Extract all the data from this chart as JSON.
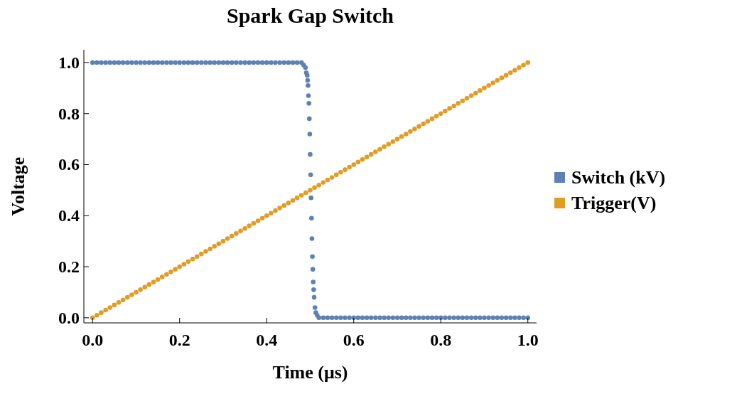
{
  "chart_data": {
    "type": "scatter",
    "title": "Spark Gap Switch",
    "xlabel": "Time (μs)",
    "ylabel": "Voltage",
    "xlim": [
      -0.02,
      1.02
    ],
    "ylim": [
      -0.02,
      1.05
    ],
    "xticks": [
      {
        "value": 0,
        "label": "0.0"
      },
      0.2,
      0.4,
      0.6,
      0.8,
      {
        "value": 1,
        "label": "1.0"
      }
    ],
    "yticks": [
      {
        "value": 0,
        "label": "0.0"
      },
      0.2,
      0.4,
      0.6,
      0.8,
      {
        "value": 1,
        "label": "1.0"
      }
    ],
    "grid": false,
    "legend": "right",
    "marker": "circle",
    "series": [
      {
        "name": "Switch (kV)",
        "color": "#5e81b5",
        "x": [
          0,
          0.01,
          0.02,
          0.03,
          0.04,
          0.05,
          0.06,
          0.07,
          0.08,
          0.09,
          0.1,
          0.11,
          0.12,
          0.13,
          0.14,
          0.15,
          0.16,
          0.17,
          0.18,
          0.19,
          0.2,
          0.21,
          0.22,
          0.23,
          0.24,
          0.25,
          0.26,
          0.27,
          0.28,
          0.29,
          0.3,
          0.31,
          0.32,
          0.33,
          0.34,
          0.35,
          0.36,
          0.37,
          0.38,
          0.39,
          0.4,
          0.41,
          0.42,
          0.43,
          0.44,
          0.45,
          0.46,
          0.47,
          0.48,
          0.485,
          0.489,
          0.491,
          0.493,
          0.494,
          0.495,
          0.496,
          0.497,
          0.498,
          0.499,
          0.5,
          0.501,
          0.502,
          0.503,
          0.504,
          0.505,
          0.506,
          0.507,
          0.508,
          0.509,
          0.511,
          0.513,
          0.516,
          0.52,
          0.53,
          0.54,
          0.55,
          0.56,
          0.57,
          0.58,
          0.59,
          0.6,
          0.61,
          0.62,
          0.63,
          0.64,
          0.65,
          0.66,
          0.67,
          0.68,
          0.69,
          0.7,
          0.71,
          0.72,
          0.73,
          0.74,
          0.75,
          0.76,
          0.77,
          0.78,
          0.79,
          0.8,
          0.81,
          0.82,
          0.83,
          0.84,
          0.85,
          0.86,
          0.87,
          0.88,
          0.89,
          0.9,
          0.91,
          0.92,
          0.93,
          0.94,
          0.95,
          0.96,
          0.97,
          0.98,
          0.99,
          1
        ],
        "values": [
          1,
          1,
          1,
          1,
          1,
          1,
          1,
          1,
          1,
          1,
          1,
          1,
          1,
          1,
          1,
          1,
          1,
          1,
          1,
          1,
          1,
          1,
          1,
          1,
          1,
          1,
          1,
          1,
          1,
          1,
          1,
          1,
          1,
          1,
          1,
          1,
          1,
          1,
          1,
          1,
          1,
          1,
          1,
          1,
          1,
          1,
          1,
          1,
          1,
          0.99,
          0.98,
          0.96,
          0.95,
          0.93,
          0.91,
          0.87,
          0.84,
          0.78,
          0.72,
          0.64,
          0.56,
          0.47,
          0.39,
          0.31,
          0.24,
          0.19,
          0.14,
          0.11,
          0.08,
          0.04,
          0.02,
          0.01,
          0,
          0,
          0,
          0,
          0,
          0,
          0,
          0,
          0,
          0,
          0,
          0,
          0,
          0,
          0,
          0,
          0,
          0,
          0,
          0,
          0,
          0,
          0,
          0,
          0,
          0,
          0,
          0,
          0,
          0,
          0,
          0,
          0,
          0,
          0,
          0,
          0,
          0,
          0,
          0,
          0,
          0,
          0,
          0,
          0,
          0,
          0,
          0,
          0
        ]
      },
      {
        "name": "Trigger(V)",
        "color": "#e19c24",
        "x": [
          0,
          0.01,
          0.02,
          0.03,
          0.04,
          0.05,
          0.06,
          0.07,
          0.08,
          0.09,
          0.1,
          0.11,
          0.12,
          0.13,
          0.14,
          0.15,
          0.16,
          0.17,
          0.18,
          0.19,
          0.2,
          0.21,
          0.22,
          0.23,
          0.24,
          0.25,
          0.26,
          0.27,
          0.28,
          0.29,
          0.3,
          0.31,
          0.32,
          0.33,
          0.34,
          0.35,
          0.36,
          0.37,
          0.38,
          0.39,
          0.4,
          0.41,
          0.42,
          0.43,
          0.44,
          0.45,
          0.46,
          0.47,
          0.48,
          0.49,
          0.5,
          0.51,
          0.52,
          0.53,
          0.54,
          0.55,
          0.56,
          0.57,
          0.58,
          0.59,
          0.6,
          0.61,
          0.62,
          0.63,
          0.64,
          0.65,
          0.66,
          0.67,
          0.68,
          0.69,
          0.7,
          0.71,
          0.72,
          0.73,
          0.74,
          0.75,
          0.76,
          0.77,
          0.78,
          0.79,
          0.8,
          0.81,
          0.82,
          0.83,
          0.84,
          0.85,
          0.86,
          0.87,
          0.88,
          0.89,
          0.9,
          0.91,
          0.92,
          0.93,
          0.94,
          0.95,
          0.96,
          0.97,
          0.98,
          0.99,
          1
        ],
        "values": [
          0,
          0.01,
          0.02,
          0.03,
          0.04,
          0.05,
          0.06,
          0.07,
          0.08,
          0.09,
          0.1,
          0.11,
          0.12,
          0.13,
          0.14,
          0.15,
          0.16,
          0.17,
          0.18,
          0.19,
          0.2,
          0.21,
          0.22,
          0.23,
          0.24,
          0.25,
          0.26,
          0.27,
          0.28,
          0.29,
          0.3,
          0.31,
          0.32,
          0.33,
          0.34,
          0.35,
          0.36,
          0.37,
          0.38,
          0.39,
          0.4,
          0.41,
          0.42,
          0.43,
          0.44,
          0.45,
          0.46,
          0.47,
          0.48,
          0.49,
          0.5,
          0.51,
          0.52,
          0.53,
          0.54,
          0.55,
          0.56,
          0.57,
          0.58,
          0.59,
          0.6,
          0.61,
          0.62,
          0.63,
          0.64,
          0.65,
          0.66,
          0.67,
          0.68,
          0.69,
          0.7,
          0.71,
          0.72,
          0.73,
          0.74,
          0.75,
          0.76,
          0.77,
          0.78,
          0.79,
          0.8,
          0.81,
          0.82,
          0.83,
          0.84,
          0.85,
          0.86,
          0.87,
          0.88,
          0.89,
          0.9,
          0.91,
          0.92,
          0.93,
          0.94,
          0.95,
          0.96,
          0.97,
          0.98,
          0.99,
          1
        ]
      }
    ]
  }
}
